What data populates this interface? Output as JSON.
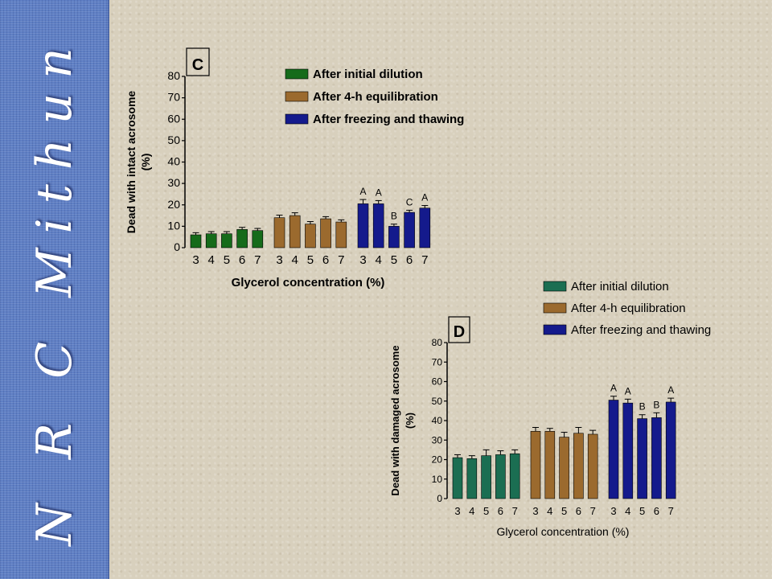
{
  "sidebar": {
    "text": "N  R  C  Mithun"
  },
  "colors": {
    "background": "#d8d0bd",
    "sidebar": "#5f7fc4",
    "series_C": [
      "#156b1a",
      "#9b6a2e",
      "#141a8c"
    ],
    "series_D": [
      "#1b6e52",
      "#9b6a2e",
      "#141a8c"
    ]
  },
  "chart_data": [
    {
      "type": "bar",
      "panel_label": "C",
      "xlabel": "Glycerol concentration  (%)",
      "ylabel_line1": "Dead with intact acrosome",
      "ylabel_line2": "(%)",
      "ylim": [
        0,
        80
      ],
      "yticks": [
        0,
        10,
        20,
        30,
        40,
        50,
        60,
        70,
        80
      ],
      "grid": false,
      "legend_position": "top-right",
      "categories": [
        "3",
        "4",
        "5",
        "6",
        "7"
      ],
      "series": [
        {
          "name": "After initial dilution",
          "values": [
            6,
            6.5,
            6.5,
            8.5,
            8
          ],
          "errors": [
            1,
            1,
            1,
            1,
            1
          ],
          "letters": [
            "",
            "",
            "",
            "",
            ""
          ]
        },
        {
          "name": "After 4-h equilibration",
          "values": [
            14,
            15,
            11,
            13.5,
            12
          ],
          "errors": [
            1.2,
            1.3,
            1.2,
            1,
            1
          ],
          "letters": [
            "",
            "",
            "",
            "",
            ""
          ]
        },
        {
          "name": "After freezing and thawing",
          "values": [
            20.5,
            20.5,
            10,
            16.5,
            18.5
          ],
          "errors": [
            2,
            1.5,
            1,
            1,
            1.2
          ],
          "letters": [
            "A",
            "A",
            "B",
            "C",
            "A"
          ]
        }
      ]
    },
    {
      "type": "bar",
      "panel_label": "D",
      "xlabel": "Glycerol concentration (%)",
      "ylabel_line1": "Dead with damaged acrosome",
      "ylabel_line2": "(%)",
      "ylim": [
        0,
        80
      ],
      "yticks": [
        0,
        10,
        20,
        30,
        40,
        50,
        60,
        70,
        80
      ],
      "grid": false,
      "legend_position": "top-right",
      "categories": [
        "3",
        "4",
        "5",
        "6",
        "7"
      ],
      "series": [
        {
          "name": "After initial dilution",
          "values": [
            21,
            20.5,
            22,
            22.5,
            23
          ],
          "errors": [
            1.5,
            1.5,
            3,
            2,
            2
          ],
          "letters": [
            "",
            "",
            "",
            "",
            ""
          ]
        },
        {
          "name": "After 4-h equilibration",
          "values": [
            34.5,
            34.5,
            31.5,
            33.5,
            33
          ],
          "errors": [
            2,
            1.5,
            2.5,
            3,
            2
          ],
          "letters": [
            "",
            "",
            "",
            "",
            ""
          ]
        },
        {
          "name": "After freezing and thawing",
          "values": [
            50.5,
            49,
            41,
            41.5,
            49.5
          ],
          "errors": [
            2,
            2,
            2,
            2.5,
            2
          ],
          "letters": [
            "A",
            "A",
            "B",
            "B",
            "A"
          ]
        }
      ]
    }
  ]
}
